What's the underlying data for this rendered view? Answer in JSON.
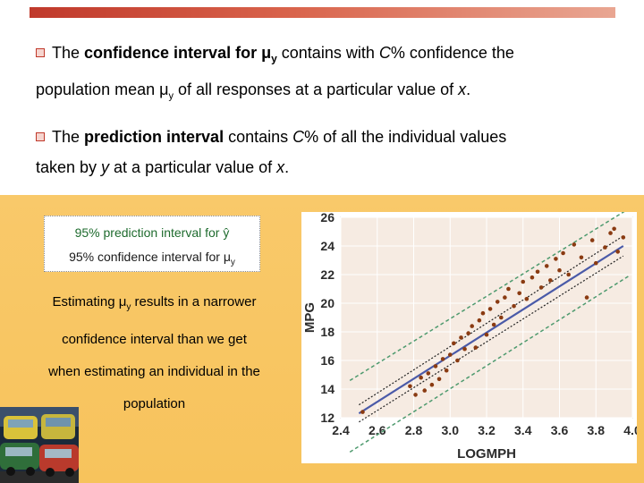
{
  "slide": {
    "bullet1_pre": "The ",
    "bullet1_bold": "confidence interval for μ",
    "bullet1_bold_sub": "y",
    "bullet1_post": " contains with ",
    "bullet1_italic": "C",
    "bullet1_tail": "% confidence the",
    "bullet1_line2_pre": "population mean μ",
    "bullet1_line2_sub": "y",
    "bullet1_line2_post": " of all responses at a particular value of ",
    "bullet1_line2_x": "x",
    "bullet1_line2_end": ".",
    "bullet2_pre": "The ",
    "bullet2_bold": "prediction interval",
    "bullet2_post": " contains ",
    "bullet2_italic": "C",
    "bullet2_tail": "% of all the individual values",
    "bullet2_line2_pre": "taken by ",
    "bullet2_line2_y": "y",
    "bullet2_line2_mid": " at a particular value of ",
    "bullet2_line2_x": "x",
    "bullet2_line2_end": "."
  },
  "legend": {
    "prediction_label": "95% prediction interval for ŷ",
    "confidence_label_pre": "95% confidence interval for μ",
    "confidence_label_sub": "y"
  },
  "note": {
    "line1_pre": "Estimating μ",
    "line1_sub": "y",
    "line1_post": " results in a narrower",
    "line2": "confidence interval than we get",
    "line3": "when estimating an individual in the",
    "line4": "population"
  },
  "chart_data": {
    "type": "scatter",
    "xlabel": "LOGMPH",
    "ylabel": "MPG",
    "xlim": [
      2.4,
      4.0
    ],
    "ylim": [
      12,
      26
    ],
    "x_ticks": [
      "2.4",
      "2.6",
      "2.8",
      "3.0",
      "3.2",
      "3.4",
      "3.6",
      "3.8",
      "4.0"
    ],
    "y_ticks": [
      "12",
      "14",
      "16",
      "18",
      "20",
      "22",
      "24",
      "26"
    ],
    "grid": true,
    "regression_line": {
      "x": [
        2.5,
        3.95
      ],
      "y": [
        12.3,
        24.0
      ]
    },
    "confidence_band": {
      "x": [
        2.5,
        3.95
      ],
      "lower": [
        11.7,
        23.3
      ],
      "upper": [
        12.9,
        24.7
      ]
    },
    "prediction_band": {
      "x": [
        2.45,
        3.98
      ],
      "lower": [
        9.6,
        21.9
      ],
      "upper": [
        14.6,
        26.6
      ]
    },
    "points": {
      "x": [
        2.52,
        2.78,
        2.81,
        2.84,
        2.86,
        2.88,
        2.9,
        2.92,
        2.94,
        2.96,
        2.98,
        3.0,
        3.02,
        3.04,
        3.06,
        3.08,
        3.1,
        3.12,
        3.14,
        3.16,
        3.18,
        3.2,
        3.22,
        3.24,
        3.26,
        3.28,
        3.3,
        3.32,
        3.35,
        3.38,
        3.4,
        3.42,
        3.45,
        3.48,
        3.5,
        3.53,
        3.55,
        3.58,
        3.6,
        3.62,
        3.65,
        3.68,
        3.72,
        3.75,
        3.78,
        3.8,
        3.85,
        3.88,
        3.9,
        3.92,
        3.95
      ],
      "y": [
        12.4,
        14.2,
        13.6,
        14.8,
        13.9,
        15.1,
        14.3,
        15.6,
        14.7,
        16.1,
        15.3,
        16.4,
        17.2,
        16.0,
        17.6,
        16.8,
        17.9,
        18.4,
        16.9,
        18.8,
        19.3,
        17.8,
        19.6,
        18.5,
        20.1,
        19.0,
        20.4,
        21.0,
        19.8,
        20.7,
        21.5,
        20.3,
        21.8,
        22.2,
        21.1,
        22.6,
        21.6,
        23.1,
        22.3,
        23.5,
        22.0,
        24.1,
        23.2,
        20.4,
        24.4,
        22.8,
        23.9,
        24.9,
        25.2,
        23.6,
        24.6
      ]
    }
  },
  "colors": {
    "topbar": "#c0392b",
    "panel": "#f8c560",
    "legend_green": "#1e6b2e",
    "regression": "#4a5aa8",
    "prediction_band": "#4e9a6e",
    "confidence_band": "#222222",
    "points": "#8a3b12",
    "chart_bg": "#f6ebe2"
  },
  "icons": {
    "bullet": "hollow-square-bullet-icon",
    "photo": "car-traffic-photo"
  }
}
